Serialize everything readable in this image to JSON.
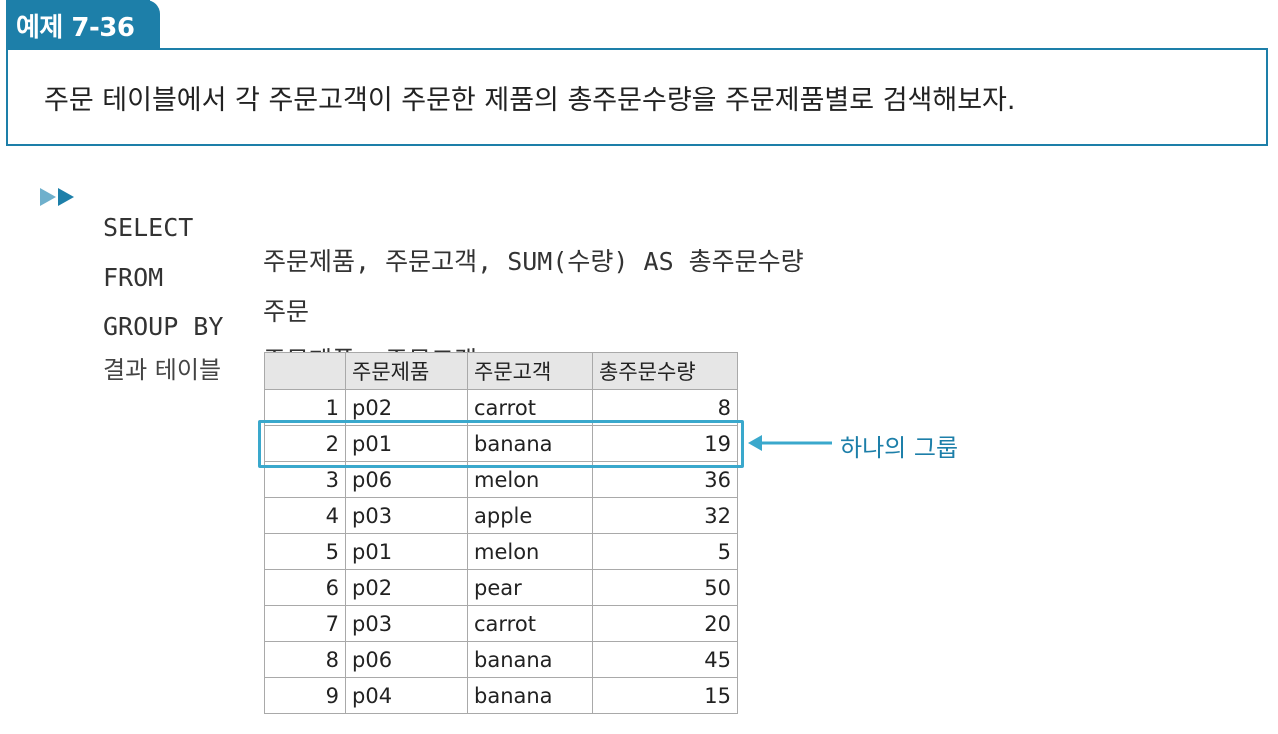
{
  "header": {
    "example_label": "예제 7-36",
    "question": "주문 테이블에서 각 주문고객이 주문한 제품의 총주문수량을 주문제품별로 검색해보자."
  },
  "sql": {
    "line1_keyword": "SELECT",
    "line1_rest": "주문제품, 주문고객, SUM(수량) AS 총주문수량",
    "line2_keyword": "FROM",
    "line2_rest": "주문",
    "line3_keyword": "GROUP BY",
    "line3_rest": "주문제품, 주문고객;"
  },
  "result": {
    "label": "결과 테이블",
    "columns": [
      "",
      "주문제품",
      "주문고객",
      "총주문수량"
    ],
    "rows": [
      [
        "1",
        "p02",
        "carrot",
        "8"
      ],
      [
        "2",
        "p01",
        "banana",
        "19"
      ],
      [
        "3",
        "p06",
        "melon",
        "36"
      ],
      [
        "4",
        "p03",
        "apple",
        "32"
      ],
      [
        "5",
        "p01",
        "melon",
        "5"
      ],
      [
        "6",
        "p02",
        "pear",
        "50"
      ],
      [
        "7",
        "p03",
        "carrot",
        "20"
      ],
      [
        "8",
        "p06",
        "banana",
        "45"
      ],
      [
        "9",
        "p04",
        "banana",
        "15"
      ]
    ]
  },
  "callout": {
    "text": "하나의 그룹",
    "color": "#1d7fa9"
  },
  "colors": {
    "accent": "#1d7fa9",
    "highlight_box": "#3aa8cc",
    "header_bg": "#e6e6e6"
  }
}
